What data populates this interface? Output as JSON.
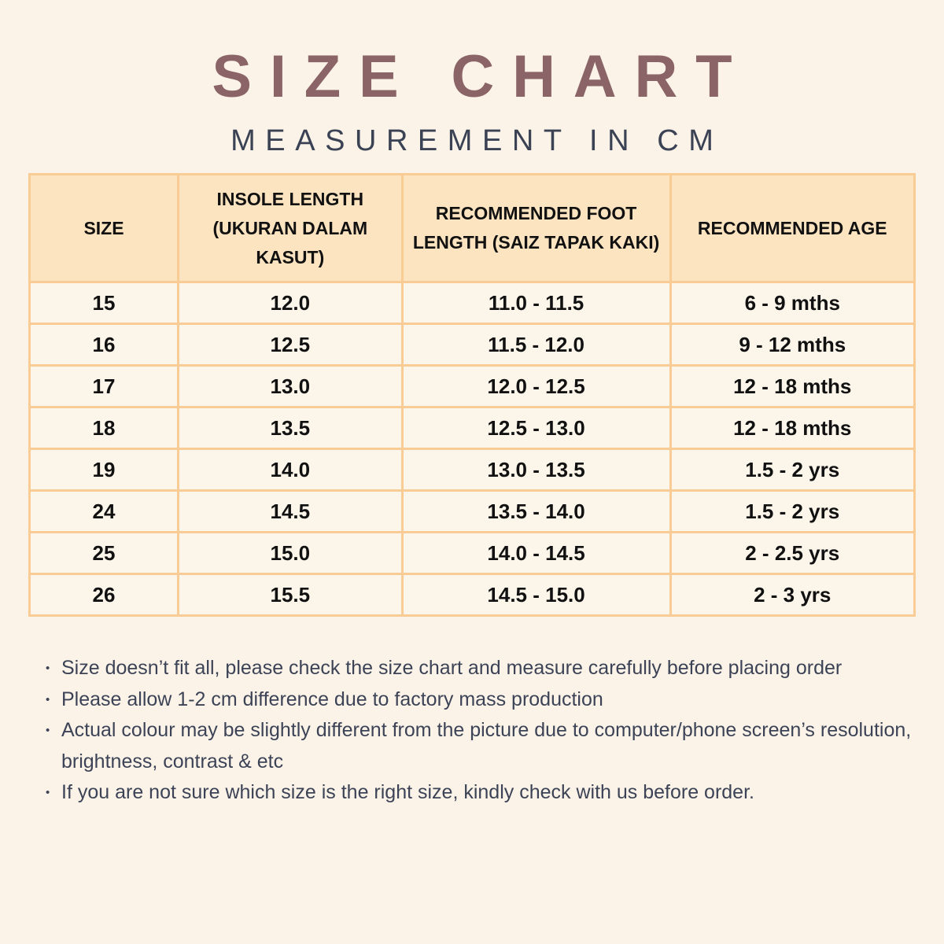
{
  "theme": {
    "background": "#FBF3E8",
    "title_color": "#8A6467",
    "subtitle_color": "#3A4254",
    "table_border": "#F8CC94",
    "header_bg": "#FCE4C1",
    "cell_bg": "#FCF5EA",
    "cell_text": "#111111",
    "notes_color": "#3C4356"
  },
  "header": {
    "title": "SIZE CHART",
    "subtitle": "MEASUREMENT IN CM"
  },
  "chart_data": {
    "type": "table",
    "title": "SIZE CHART — MEASUREMENT IN CM",
    "columns": [
      "SIZE",
      "INSOLE LENGTH (UKURAN DALAM KASUT)",
      "RECOMMENDED FOOT LENGTH (SAIZ TAPAK KAKI)",
      "RECOMMENDED AGE"
    ],
    "rows": [
      [
        "15",
        "12.0",
        "11.0 - 11.5",
        "6 - 9 mths"
      ],
      [
        "16",
        "12.5",
        "11.5 - 12.0",
        "9 - 12 mths"
      ],
      [
        "17",
        "13.0",
        "12.0 - 12.5",
        "12 - 18 mths"
      ],
      [
        "18",
        "13.5",
        "12.5 - 13.0",
        "12 - 18 mths"
      ],
      [
        "19",
        "14.0",
        "13.0 - 13.5",
        "1.5 - 2 yrs"
      ],
      [
        "24",
        "14.5",
        "13.5 - 14.0",
        "1.5 - 2 yrs"
      ],
      [
        "25",
        "15.0",
        "14.0 - 14.5",
        "2 - 2.5 yrs"
      ],
      [
        "26",
        "15.5",
        "14.5 - 15.0",
        "2 - 3 yrs"
      ]
    ]
  },
  "table": {
    "columns": [
      "INSOLE LENGTH (UKURAN DALAM KASUT)",
      "RECOMMENDED FOOT LENGTH (SAIZ TAPAK KAKI)"
    ],
    "col_size": "SIZE",
    "col_insole": "INSOLE LENGTH (UKURAN DALAM KASUT)",
    "col_foot": "RECOMMENDED FOOT LENGTH (SAIZ TAPAK KAKI)",
    "col_age": "RECOMMENDED AGE",
    "rows": [
      [
        "15",
        "12.0",
        "11.0 - 11.5",
        "6 - 9 mths"
      ],
      [
        "16",
        "12.5",
        "11.5 - 12.0",
        "9 - 12 mths"
      ],
      [
        "17",
        "13.0",
        "12.0 - 12.5",
        "12 - 18 mths"
      ],
      [
        "18",
        "13.5",
        "12.5 - 13.0",
        "12 - 18 mths"
      ],
      [
        "19",
        "14.0",
        "13.0 - 13.5",
        "1.5 - 2 yrs"
      ],
      [
        "24",
        "14.5",
        "13.5 - 14.0",
        "1.5 - 2 yrs"
      ],
      [
        "25",
        "15.0",
        "14.0 - 14.5",
        "2 - 2.5 yrs"
      ],
      [
        "26",
        "15.5",
        "14.5 - 15.0",
        "2 - 3 yrs"
      ]
    ]
  },
  "notes": [
    "Size doesn’t fit all, please check the size chart and measure carefully before placing order",
    "Please allow 1-2 cm difference due to factory mass production",
    "Actual colour may be slightly different from the picture due to computer/phone screen’s resolution, brightness, contrast & etc",
    "If you are not sure which size is the right size, kindly check with us before order."
  ],
  "bullet_glyph": "•"
}
